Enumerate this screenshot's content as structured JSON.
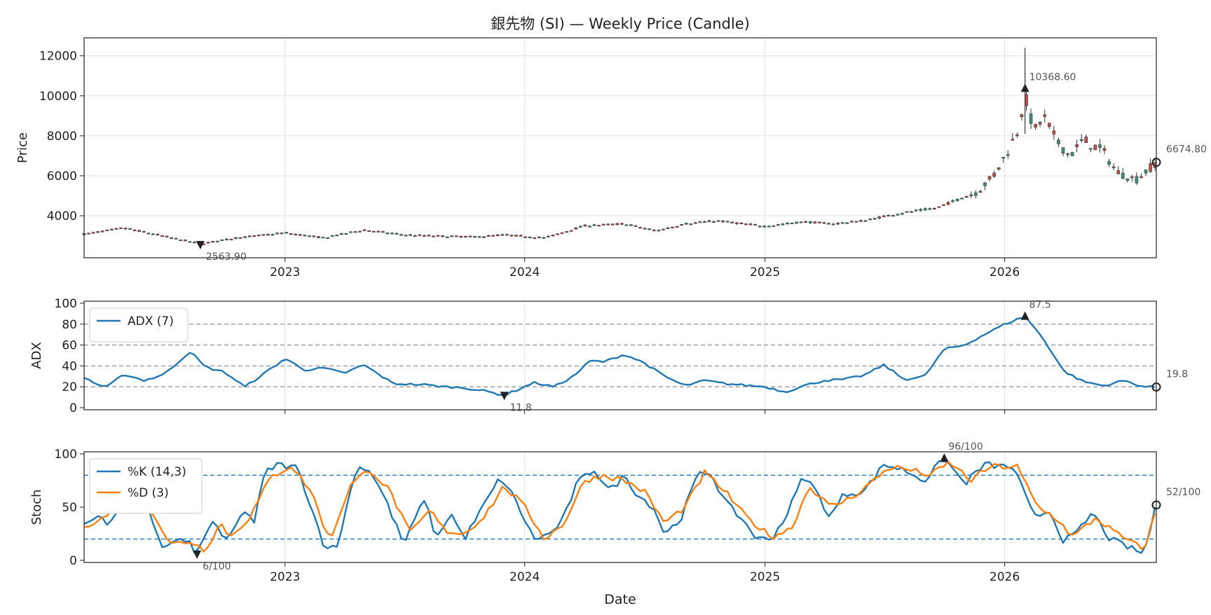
{
  "figure": {
    "title": "銀先物 (SI) — Weekly Price (Candle)",
    "xlabel": "Date"
  },
  "colors": {
    "up": "#3e8e7e",
    "down": "#c0504d",
    "wick": "#333333",
    "line1": "#1f77b4",
    "line2": "#ff7f0e",
    "grid": "#e0e0e0",
    "refline_gray": "#999999",
    "refline_blue": "#1f77b4",
    "marker": "#222222",
    "annotation": "#555555"
  },
  "chart_data": [
    {
      "id": "price",
      "type": "candlestick",
      "ylabel": "Price",
      "ylim": [
        1900,
        12900
      ],
      "yticks": [
        4000,
        6000,
        8000,
        10000,
        12000
      ],
      "xticks": [
        "2023",
        "2024",
        "2025",
        "2026"
      ],
      "xrange": [
        "2022-03-01",
        "2026-08-20"
      ],
      "grid": true,
      "anchors": [
        [
          "2022-03-01",
          3080
        ],
        [
          "2022-05-01",
          3400
        ],
        [
          "2022-07-01",
          2980
        ],
        [
          "2022-08-25",
          2600
        ],
        [
          "2022-10-20",
          2900
        ],
        [
          "2023-01-01",
          3150
        ],
        [
          "2023-03-01",
          2900
        ],
        [
          "2023-05-01",
          3300
        ],
        [
          "2023-07-01",
          3050
        ],
        [
          "2023-09-01",
          2980
        ],
        [
          "2023-10-20",
          2950
        ],
        [
          "2023-12-01",
          3050
        ],
        [
          "2024-02-01",
          2900
        ],
        [
          "2024-04-01",
          3500
        ],
        [
          "2024-06-01",
          3600
        ],
        [
          "2024-07-20",
          3250
        ],
        [
          "2024-09-01",
          3600
        ],
        [
          "2024-10-20",
          3750
        ],
        [
          "2025-01-01",
          3480
        ],
        [
          "2025-03-01",
          3700
        ],
        [
          "2025-04-15",
          3600
        ],
        [
          "2025-06-01",
          3750
        ],
        [
          "2025-07-20",
          4100
        ],
        [
          "2025-09-20",
          4400
        ],
        [
          "2025-11-20",
          5200
        ],
        [
          "2025-12-15",
          6000
        ],
        [
          "2026-01-05",
          7200
        ],
        [
          "2026-01-20",
          8200
        ],
        [
          "2026-02-01",
          10000
        ],
        [
          "2026-02-15",
          8200
        ],
        [
          "2026-03-01",
          9000
        ],
        [
          "2026-03-20",
          7800
        ],
        [
          "2026-04-10",
          7000
        ],
        [
          "2026-05-01",
          7800
        ],
        [
          "2026-06-01",
          7200
        ],
        [
          "2026-06-20",
          6200
        ],
        [
          "2026-07-20",
          5800
        ],
        [
          "2026-08-20",
          6674.8
        ]
      ],
      "annotations": [
        {
          "label": "10368.60",
          "date": "2026-02-01",
          "value": 10368.6,
          "marker": "triangle-up"
        },
        {
          "label": "2563.90",
          "date": "2022-08-25",
          "value": 2563.9,
          "marker": "triangle-down"
        },
        {
          "label": "6674.80",
          "date": "2026-08-20",
          "value": 6674.8,
          "marker": "circle"
        }
      ]
    },
    {
      "id": "adx",
      "type": "line",
      "ylabel": "ADX",
      "ylim": [
        -2,
        102
      ],
      "yticks": [
        0,
        20,
        40,
        60,
        80,
        100
      ],
      "reference_lines": [
        20,
        40,
        60,
        80
      ],
      "series": [
        {
          "name": "ADX (7)",
          "anchors": [
            [
              "2022-03-01",
              29
            ],
            [
              "2022-03-22",
              22
            ],
            [
              "2022-04-05",
              20
            ],
            [
              "2022-05-01",
              32
            ],
            [
              "2022-06-01",
              26
            ],
            [
              "2022-07-01",
              32
            ],
            [
              "2022-08-10",
              54
            ],
            [
              "2022-09-01",
              39
            ],
            [
              "2022-10-01",
              34
            ],
            [
              "2022-11-01",
              20
            ],
            [
              "2022-12-01",
              33
            ],
            [
              "2023-01-01",
              47
            ],
            [
              "2023-02-01",
              36
            ],
            [
              "2023-03-01",
              38
            ],
            [
              "2023-04-01",
              33
            ],
            [
              "2023-05-01",
              41
            ],
            [
              "2023-06-15",
              23
            ],
            [
              "2023-08-01",
              22
            ],
            [
              "2023-09-01",
              20
            ],
            [
              "2023-10-01",
              19
            ],
            [
              "2023-11-01",
              16
            ],
            [
              "2023-12-01",
              11.8
            ],
            [
              "2024-01-15",
              24
            ],
            [
              "2024-02-15",
              20
            ],
            [
              "2024-03-15",
              30
            ],
            [
              "2024-04-10",
              45
            ],
            [
              "2024-05-01",
              44
            ],
            [
              "2024-06-01",
              51
            ],
            [
              "2024-07-01",
              43
            ],
            [
              "2024-08-01",
              30
            ],
            [
              "2024-09-01",
              21
            ],
            [
              "2024-10-01",
              26
            ],
            [
              "2024-11-01",
              23
            ],
            [
              "2025-01-01",
              20
            ],
            [
              "2025-02-01",
              15
            ],
            [
              "2025-03-01",
              21
            ],
            [
              "2025-04-01",
              26
            ],
            [
              "2025-05-01",
              27
            ],
            [
              "2025-06-01",
              31
            ],
            [
              "2025-07-01",
              41
            ],
            [
              "2025-08-01",
              27
            ],
            [
              "2025-09-01",
              30
            ],
            [
              "2025-10-01",
              56
            ],
            [
              "2025-11-01",
              60
            ],
            [
              "2025-12-01",
              70
            ],
            [
              "2026-01-01",
              80
            ],
            [
              "2026-02-01",
              87.5
            ],
            [
              "2026-03-01",
              66
            ],
            [
              "2026-04-01",
              35
            ],
            [
              "2026-05-01",
              25
            ],
            [
              "2026-06-01",
              21
            ],
            [
              "2026-07-01",
              26
            ],
            [
              "2026-08-01",
              20
            ],
            [
              "2026-08-20",
              19.8
            ]
          ]
        }
      ],
      "legend": {
        "placement": "upper-left"
      },
      "annotations": [
        {
          "label": "87.5",
          "date": "2026-02-01",
          "value": 87.5,
          "marker": "triangle-up"
        },
        {
          "label": "11.8",
          "date": "2023-12-01",
          "value": 11.8,
          "marker": "triangle-down"
        },
        {
          "label": "19.8",
          "date": "2026-08-20",
          "value": 19.8,
          "marker": "circle"
        }
      ]
    },
    {
      "id": "stoch",
      "type": "line",
      "ylabel": "Stoch",
      "ylim": [
        -2,
        102
      ],
      "yticks": [
        0,
        50,
        100
      ],
      "reference_lines": [
        20,
        80
      ],
      "xticks": [
        "2023",
        "2024",
        "2025",
        "2026"
      ],
      "series": [
        {
          "name": "%K (14,3)",
          "anchors": [
            [
              "2022-03-01",
              35
            ],
            [
              "2022-03-20",
              43
            ],
            [
              "2022-04-10",
              32
            ],
            [
              "2022-05-01",
              65
            ],
            [
              "2022-05-15",
              73
            ],
            [
              "2022-06-01",
              60
            ],
            [
              "2022-06-20",
              25
            ],
            [
              "2022-07-01",
              10
            ],
            [
              "2022-07-20",
              20
            ],
            [
              "2022-08-10",
              15
            ],
            [
              "2022-08-20",
              6
            ],
            [
              "2022-09-01",
              22
            ],
            [
              "2022-09-15",
              40
            ],
            [
              "2022-10-01",
              15
            ],
            [
              "2022-11-01",
              47
            ],
            [
              "2022-11-15",
              36
            ],
            [
              "2022-12-01",
              82
            ],
            [
              "2022-12-20",
              90
            ],
            [
              "2023-01-20",
              87
            ],
            [
              "2023-02-10",
              50
            ],
            [
              "2023-03-01",
              15
            ],
            [
              "2023-03-20",
              10
            ],
            [
              "2023-04-20",
              88
            ],
            [
              "2023-05-10",
              85
            ],
            [
              "2023-06-01",
              60
            ],
            [
              "2023-07-01",
              15
            ],
            [
              "2023-08-01",
              58
            ],
            [
              "2023-08-20",
              20
            ],
            [
              "2023-09-10",
              45
            ],
            [
              "2023-10-01",
              20
            ],
            [
              "2023-11-01",
              53
            ],
            [
              "2023-11-25",
              78
            ],
            [
              "2023-12-15",
              60
            ],
            [
              "2024-01-15",
              20
            ],
            [
              "2024-02-10",
              25
            ],
            [
              "2024-03-01",
              40
            ],
            [
              "2024-03-20",
              72
            ],
            [
              "2024-04-15",
              86
            ],
            [
              "2024-05-10",
              65
            ],
            [
              "2024-06-01",
              80
            ],
            [
              "2024-06-20",
              62
            ],
            [
              "2024-07-15",
              50
            ],
            [
              "2024-08-01",
              25
            ],
            [
              "2024-08-25",
              38
            ],
            [
              "2024-09-20",
              80
            ],
            [
              "2024-10-10",
              83
            ],
            [
              "2024-11-01",
              55
            ],
            [
              "2024-12-01",
              36
            ],
            [
              "2024-12-20",
              20
            ],
            [
              "2025-01-10",
              20
            ],
            [
              "2025-02-01",
              40
            ],
            [
              "2025-03-01",
              80
            ],
            [
              "2025-03-20",
              65
            ],
            [
              "2025-04-10",
              40
            ],
            [
              "2025-05-01",
              62
            ],
            [
              "2025-06-01",
              65
            ],
            [
              "2025-07-01",
              90
            ],
            [
              "2025-08-01",
              85
            ],
            [
              "2025-09-01",
              75
            ],
            [
              "2025-10-01",
              96
            ],
            [
              "2025-11-01",
              72
            ],
            [
              "2025-12-01",
              90
            ],
            [
              "2026-01-15",
              87
            ],
            [
              "2026-02-15",
              40
            ],
            [
              "2026-03-10",
              47
            ],
            [
              "2026-04-01",
              18
            ],
            [
              "2026-04-20",
              25
            ],
            [
              "2026-05-15",
              45
            ],
            [
              "2026-06-10",
              20
            ],
            [
              "2026-08-01",
              6
            ],
            [
              "2026-08-20",
              52
            ]
          ]
        },
        {
          "name": "%D (3)",
          "anchors": [
            [
              "2022-03-01",
              33
            ],
            [
              "2022-04-01",
              40
            ],
            [
              "2022-05-10",
              68
            ],
            [
              "2022-06-10",
              50
            ],
            [
              "2022-07-10",
              15
            ],
            [
              "2022-08-10",
              18
            ],
            [
              "2022-09-01",
              10
            ],
            [
              "2022-09-25",
              35
            ],
            [
              "2022-10-10",
              22
            ],
            [
              "2022-11-10",
              42
            ],
            [
              "2022-12-10",
              78
            ],
            [
              "2023-01-10",
              89
            ],
            [
              "2023-02-10",
              65
            ],
            [
              "2023-03-10",
              18
            ],
            [
              "2023-04-10",
              70
            ],
            [
              "2023-05-10",
              86
            ],
            [
              "2023-06-10",
              65
            ],
            [
              "2023-07-10",
              25
            ],
            [
              "2023-08-10",
              47
            ],
            [
              "2023-09-01",
              28
            ],
            [
              "2023-10-01",
              25
            ],
            [
              "2023-11-01",
              42
            ],
            [
              "2023-12-01",
              70
            ],
            [
              "2024-01-01",
              50
            ],
            [
              "2024-02-01",
              20
            ],
            [
              "2024-03-01",
              35
            ],
            [
              "2024-04-01",
              75
            ],
            [
              "2024-05-01",
              80
            ],
            [
              "2024-06-01",
              75
            ],
            [
              "2024-07-01",
              65
            ],
            [
              "2024-08-01",
              35
            ],
            [
              "2024-09-01",
              50
            ],
            [
              "2024-10-01",
              82
            ],
            [
              "2024-11-01",
              65
            ],
            [
              "2024-12-01",
              42
            ],
            [
              "2025-01-10",
              22
            ],
            [
              "2025-02-10",
              30
            ],
            [
              "2025-03-10",
              70
            ],
            [
              "2025-04-10",
              50
            ],
            [
              "2025-05-10",
              58
            ],
            [
              "2025-06-10",
              72
            ],
            [
              "2025-07-10",
              88
            ],
            [
              "2025-08-10",
              85
            ],
            [
              "2025-09-10",
              80
            ],
            [
              "2025-10-10",
              92
            ],
            [
              "2025-11-10",
              75
            ],
            [
              "2025-12-10",
              88
            ],
            [
              "2026-01-20",
              88
            ],
            [
              "2026-02-20",
              50
            ],
            [
              "2026-03-20",
              40
            ],
            [
              "2026-04-15",
              22
            ],
            [
              "2026-05-20",
              40
            ],
            [
              "2026-06-20",
              25
            ],
            [
              "2026-08-01",
              10
            ],
            [
              "2026-08-20",
              47
            ]
          ]
        }
      ],
      "legend": {
        "placement": "upper-left"
      },
      "annotations": [
        {
          "label": "96/100",
          "date": "2025-10-01",
          "value": 96,
          "marker": "triangle-up"
        },
        {
          "label": "6/100",
          "date": "2022-08-20",
          "value": 6,
          "marker": "triangle-down"
        },
        {
          "label": "52/100",
          "date": "2026-08-20",
          "value": 52,
          "marker": "circle"
        }
      ]
    }
  ]
}
